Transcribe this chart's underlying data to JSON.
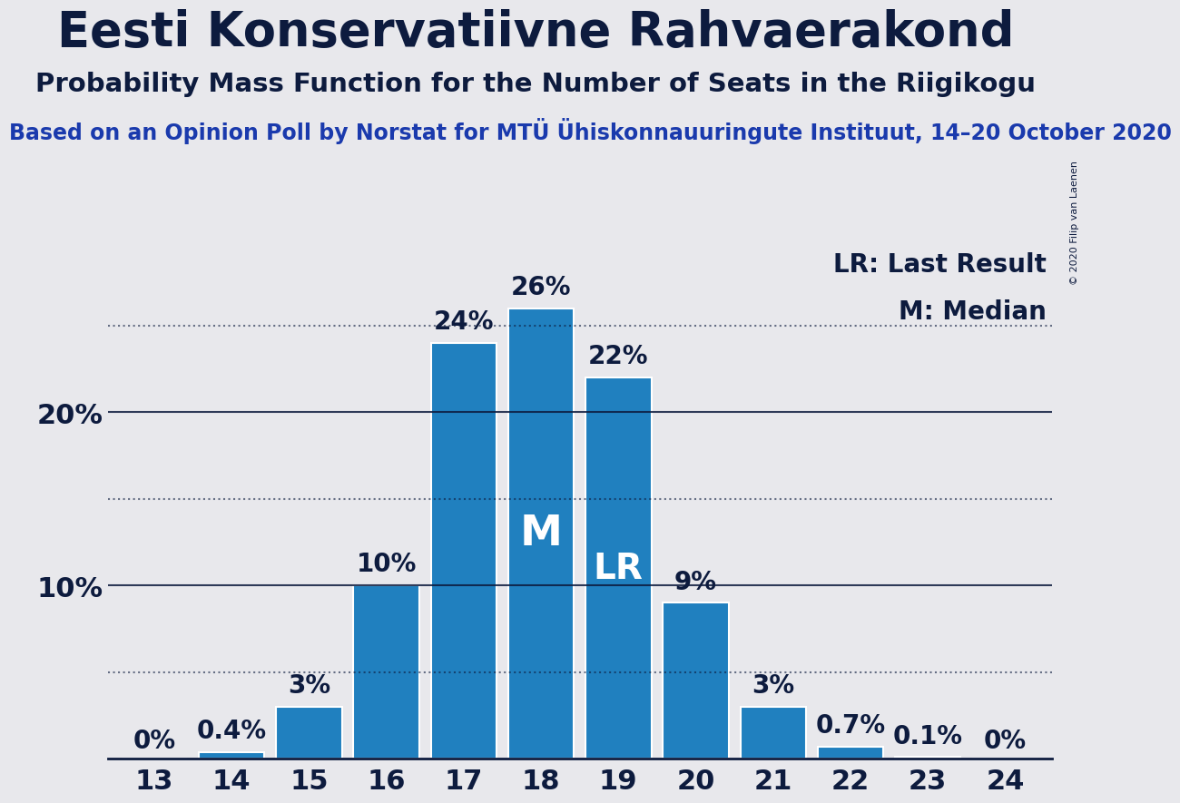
{
  "title": "Eesti Konservatiivne Rahvaerakond",
  "subtitle": "Probability Mass Function for the Number of Seats in the Riigikogu",
  "source_line": "Based on an Opinion Poll by Norstat for MTÜ Ühiskonnauuringute Instituut, 14–20 October 2020",
  "copyright": "© 2020 Filip van Laenen",
  "seats": [
    13,
    14,
    15,
    16,
    17,
    18,
    19,
    20,
    21,
    22,
    23,
    24
  ],
  "values": [
    0.0,
    0.4,
    3.0,
    10.0,
    24.0,
    26.0,
    22.0,
    9.0,
    3.0,
    0.7,
    0.1,
    0.0
  ],
  "labels": [
    "0%",
    "0.4%",
    "3%",
    "10%",
    "24%",
    "26%",
    "22%",
    "9%",
    "3%",
    "0.7%",
    "0.1%",
    "0%"
  ],
  "bar_color": "#2080bf",
  "median_seat": 18,
  "lr_seat": 19,
  "median_label": "M",
  "lr_label": "LR",
  "background_color": "#e8e8ec",
  "ytick_values": [
    10,
    20
  ],
  "ytick_labels": [
    "10%",
    "20%"
  ],
  "dotted_lines": [
    5,
    15,
    25
  ],
  "solid_lines": [
    10,
    20
  ],
  "ylim": [
    0,
    30
  ],
  "title_fontsize": 38,
  "subtitle_fontsize": 21,
  "source_fontsize": 17,
  "bar_label_fontsize": 20,
  "axis_tick_fontsize": 22,
  "legend_fontsize": 20,
  "title_color": "#0d1b3e",
  "source_color": "#1a3aad"
}
